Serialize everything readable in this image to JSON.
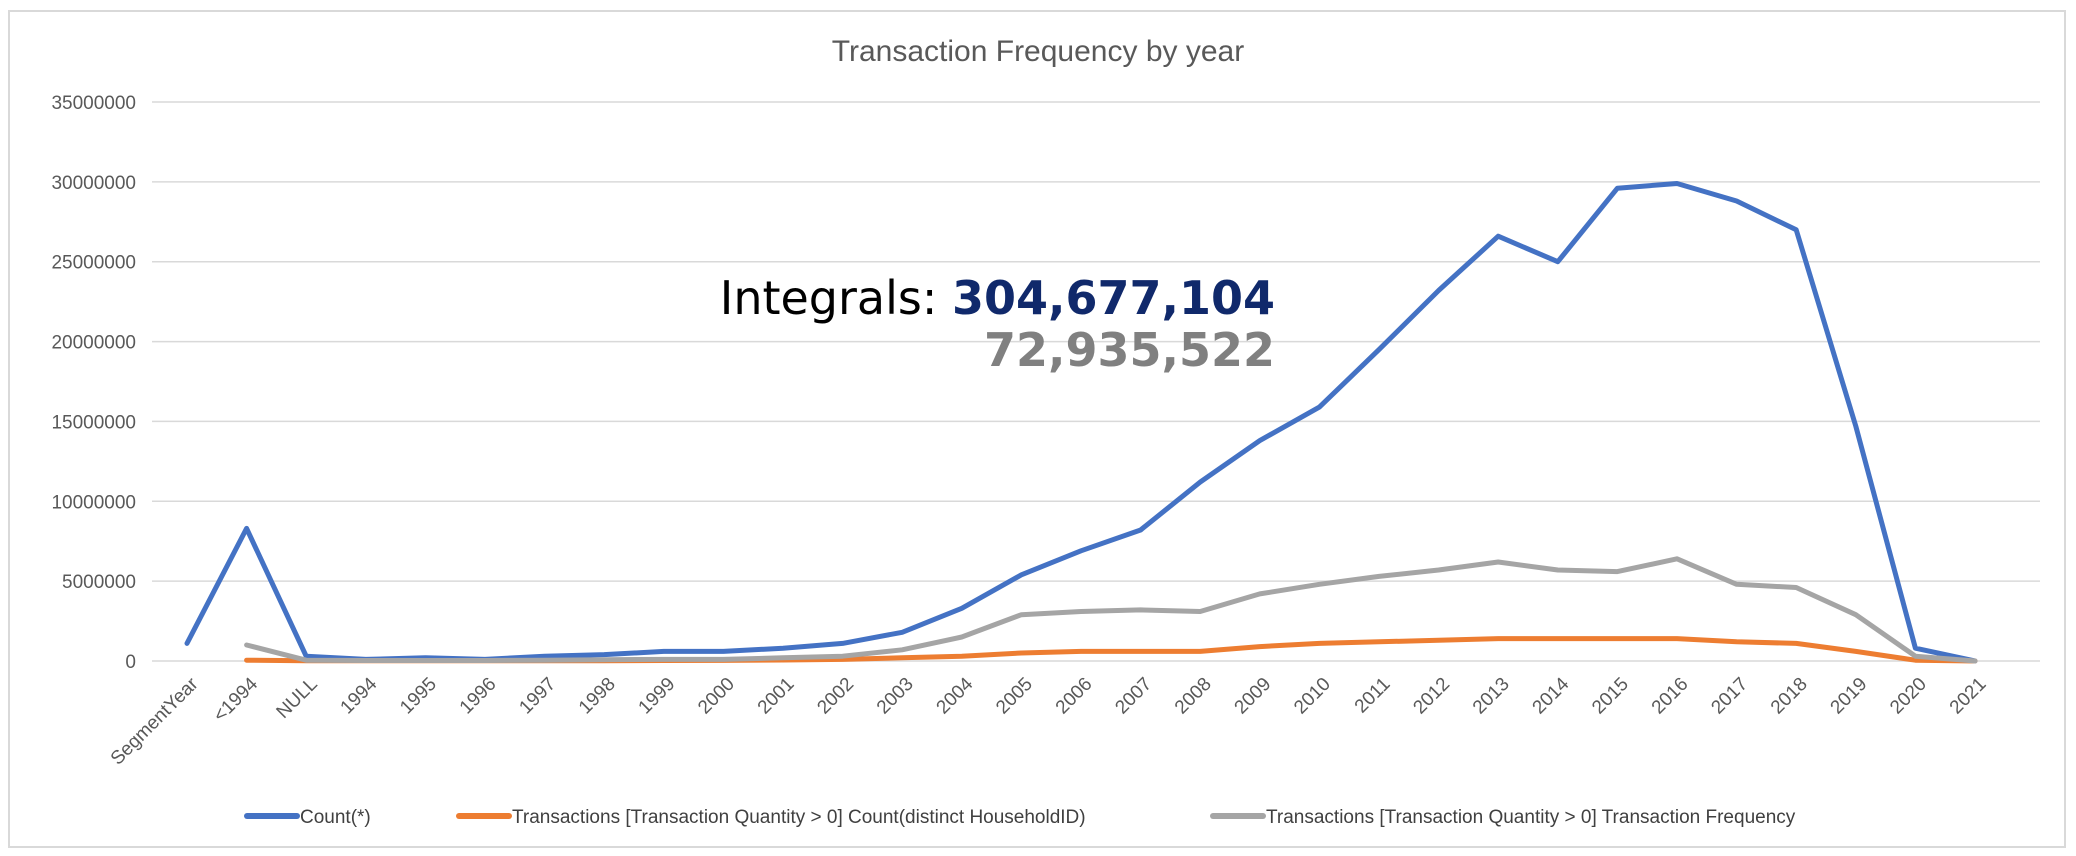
{
  "chart_data": {
    "type": "line",
    "title": "Transaction Frequency by year",
    "xlabel": "",
    "ylabel": "",
    "ylim": [
      0,
      35000000
    ],
    "yticks": [
      "0",
      "5000000",
      "10000000",
      "15000000",
      "20000000",
      "25000000",
      "30000000",
      "35000000"
    ],
    "categories": [
      "SegmentYear",
      "<1994",
      "NULL",
      "1994",
      "1995",
      "1996",
      "1997",
      "1998",
      "1999",
      "2000",
      "2001",
      "2002",
      "2003",
      "2004",
      "2005",
      "2006",
      "2007",
      "2008",
      "2009",
      "2010",
      "2011",
      "2012",
      "2013",
      "2014",
      "2015",
      "2016",
      "2017",
      "2018",
      "2019",
      "2020",
      "2021"
    ],
    "series": [
      {
        "name": "Count(*)",
        "color": "#4472c4",
        "values": [
          1100000,
          8300000,
          300000,
          100000,
          200000,
          100000,
          300000,
          400000,
          600000,
          600000,
          800000,
          1100000,
          1800000,
          3300000,
          5400000,
          6900000,
          8200000,
          11200000,
          13800000,
          15900000,
          19500000,
          23200000,
          26600000,
          25000000,
          29600000,
          29900000,
          28800000,
          27000000,
          14700000,
          800000,
          0
        ]
      },
      {
        "name": "Transactions [Transaction Quantity > 0]  Count(distinct HouseholdID)",
        "color": "#ed7d31",
        "values": [
          null,
          50000,
          20000,
          10000,
          10000,
          10000,
          10000,
          20000,
          30000,
          40000,
          60000,
          100000,
          200000,
          300000,
          500000,
          600000,
          600000,
          600000,
          900000,
          1100000,
          1200000,
          1300000,
          1400000,
          1400000,
          1400000,
          1400000,
          1200000,
          1100000,
          600000,
          50000,
          0
        ]
      },
      {
        "name": "Transactions [Transaction Quantity > 0]  Transaction Frequency",
        "color": "#a5a5a5",
        "values": [
          null,
          1000000,
          50000,
          30000,
          30000,
          30000,
          50000,
          80000,
          100000,
          100000,
          200000,
          300000,
          700000,
          1500000,
          2900000,
          3100000,
          3200000,
          3100000,
          4200000,
          4800000,
          5300000,
          5700000,
          6200000,
          5700000,
          5600000,
          6400000,
          4800000,
          4600000,
          2900000,
          300000,
          0
        ]
      }
    ],
    "legend_position": "bottom",
    "grid": true,
    "annotation": {
      "prefix": "Integrals: ",
      "value_1": "304,677,104",
      "value_2": "72,935,522"
    }
  }
}
